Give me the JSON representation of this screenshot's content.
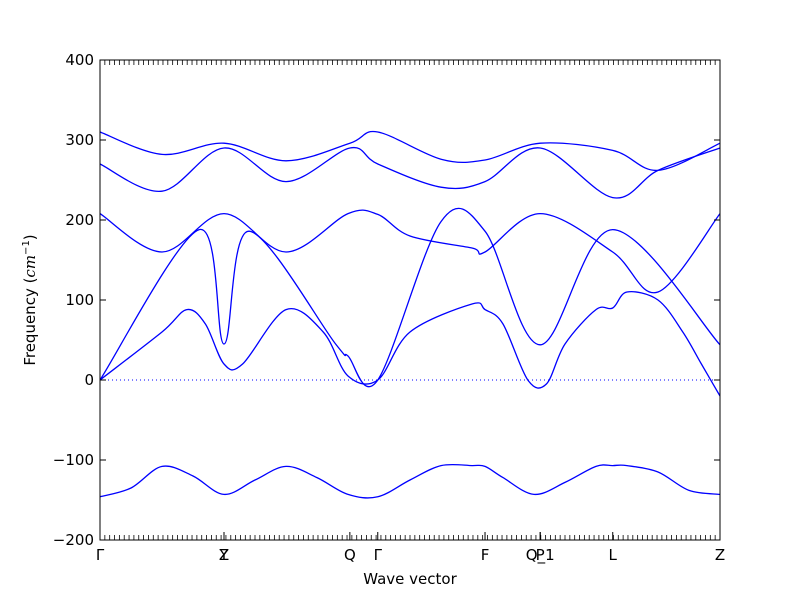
{
  "chart_data": {
    "type": "line",
    "title": "",
    "xlabel": "Wave vector",
    "ylabel": "Frequency ($cm^{-1}$)",
    "ylabel_parts": {
      "text": "Frequency (",
      "math": "cm",
      "sup": "−1",
      "close": ")"
    },
    "ylim": [
      -200,
      400
    ],
    "yticks": [
      -200,
      -100,
      0,
      100,
      200,
      300,
      400
    ],
    "grid": false,
    "zero_line": true,
    "xlim": [
      0,
      1.0
    ],
    "high_symmetry_points": [
      {
        "label": "Γ",
        "x": 0.0
      },
      {
        "label": "Y",
        "x": 0.2
      },
      {
        "label": "Z",
        "x": 0.2
      },
      {
        "label": "Q",
        "x": 0.403
      },
      {
        "label": "Γ",
        "x": 0.448
      },
      {
        "label": "F",
        "x": 0.621
      },
      {
        "label": "P",
        "x": 0.71
      },
      {
        "label": "Q_1",
        "x": 0.71
      },
      {
        "label": "L",
        "x": 0.827
      },
      {
        "label": "Z",
        "x": 1.0
      }
    ],
    "line_color": "#0000ff",
    "series": [
      {
        "x": [
          0,
          0.05,
          0.1,
          0.15,
          0.2,
          0.25,
          0.3,
          0.35,
          0.4,
          0.448,
          0.5,
          0.55,
          0.6,
          0.621,
          0.65,
          0.7,
          0.75,
          0.8,
          0.827,
          0.85,
          0.9,
          0.95,
          1.0
        ],
        "values": [
          -146,
          -135,
          -108,
          -120,
          -143,
          -125,
          -108,
          -122,
          -143,
          -146,
          -125,
          -107,
          -107,
          -108,
          -122,
          -143,
          -128,
          -108,
          -107,
          -107,
          -115,
          -138,
          -143
        ]
      },
      {
        "x": [
          0,
          0.1,
          0.14,
          0.17,
          0.2,
          0.23,
          0.3,
          0.36,
          0.4,
          0.448,
          0.5,
          0.6,
          0.621,
          0.65,
          0.69,
          0.72,
          0.75,
          0.8,
          0.827,
          0.85,
          0.9,
          0.94,
          0.97,
          1.0
        ],
        "values": [
          0,
          60,
          88,
          70,
          20,
          20,
          88,
          60,
          5,
          0,
          60,
          95,
          88,
          70,
          0,
          -5,
          45,
          88,
          90,
          110,
          100,
          60,
          20,
          -20
        ]
      },
      {
        "x": [
          0,
          0.16,
          0.2,
          0.24,
          0.38,
          0.4,
          0.448,
          0.55,
          0.621,
          0.71,
          0.827,
          1.0
        ],
        "values": [
          0,
          188,
          45,
          186,
          45,
          30,
          0,
          198,
          186,
          44,
          188,
          44
        ]
      },
      {
        "x": [
          0,
          0.1,
          0.2,
          0.3,
          0.4,
          0.448,
          0.5,
          0.6,
          0.621,
          0.71,
          0.827,
          0.9,
          1.0
        ],
        "values": [
          208,
          160,
          208,
          160,
          208,
          207,
          180,
          165,
          160,
          208,
          160,
          110,
          208
        ]
      },
      {
        "x": [
          0,
          0.1,
          0.2,
          0.3,
          0.403,
          0.448,
          0.55,
          0.621,
          0.71,
          0.827,
          0.9,
          1.0
        ],
        "values": [
          270,
          236,
          290,
          248,
          290,
          270,
          241,
          248,
          290,
          228,
          262,
          290
        ]
      },
      {
        "x": [
          0,
          0.1,
          0.2,
          0.3,
          0.403,
          0.448,
          0.55,
          0.621,
          0.71,
          0.827,
          0.9,
          1.0
        ],
        "values": [
          310,
          282,
          296,
          274,
          296,
          310,
          276,
          275,
          296,
          287,
          262,
          296
        ]
      }
    ]
  }
}
